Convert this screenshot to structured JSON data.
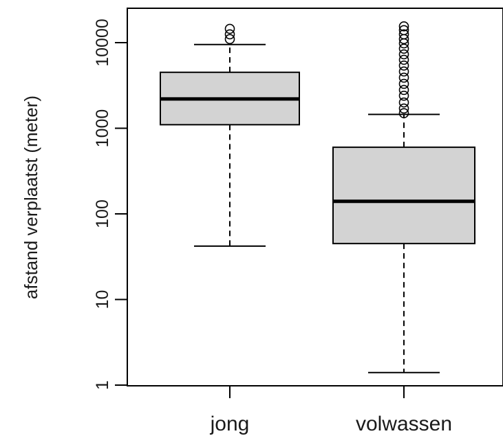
{
  "chart_data": {
    "type": "box",
    "ylabel": "afstand verplaatst (meter)",
    "xlabel": "",
    "title": "",
    "y_scale": "log",
    "ylim": [
      1,
      20000
    ],
    "yticks": [
      1,
      10,
      100,
      1000,
      10000
    ],
    "ytick_labels": [
      "1",
      "10",
      "100",
      "1000",
      "10000"
    ],
    "categories": [
      "jong",
      "volwassen"
    ],
    "boxes": [
      {
        "category": "jong",
        "whisker_low": 42,
        "q1": 1100,
        "median": 2200,
        "q3": 4500,
        "whisker_high": 9500,
        "outliers": [
          11000,
          12500,
          14500
        ]
      },
      {
        "category": "volwassen",
        "whisker_low": 1.4,
        "q1": 45,
        "median": 140,
        "q3": 600,
        "whisker_high": 1450,
        "outliers": [
          1500,
          1700,
          2000,
          2400,
          2800,
          3300,
          3900,
          4600,
          5400,
          6300,
          7300,
          8500,
          9800,
          11000,
          12500,
          14000,
          15500
        ]
      }
    ],
    "box_fill": "#d3d3d3",
    "line_color": "#000000",
    "grid": false,
    "legend": "none"
  }
}
